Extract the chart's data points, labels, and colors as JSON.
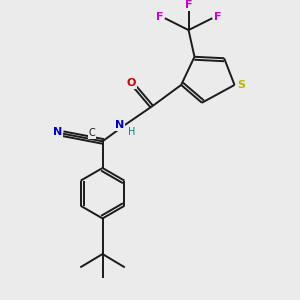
{
  "bg_color": "#ebebeb",
  "bond_color": "#1a1a1a",
  "bond_width": 1.4,
  "atom_colors": {
    "S": "#b8b800",
    "N": "#0000cc",
    "O": "#cc0000",
    "F": "#cc00cc",
    "C_label": "#1a1a1a",
    "H": "#008888"
  },
  "xlim": [
    0,
    10
  ],
  "ylim": [
    0,
    10
  ]
}
